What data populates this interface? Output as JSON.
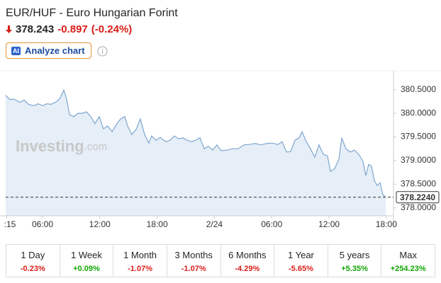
{
  "header": {
    "title": "EUR/HUF - Euro Hungarian Forint",
    "price": "378.243",
    "change": "-0.897",
    "change_percent": "(-0.24%)",
    "ai_badge": "AI",
    "button": "Analyze chart"
  },
  "chart_data": {
    "type": "line",
    "color": "#7ea7cf",
    "fill_color": "#e6eef7",
    "watermark_brand": "Investing",
    "watermark_suffix": ".com",
    "x": [
      2.14,
      2.59,
      3.03,
      3.62,
      4.07,
      4.52,
      5.11,
      5.55,
      6.0,
      6.45,
      6.89,
      7.34,
      7.78,
      8.23,
      8.52,
      8.82,
      9.27,
      9.71,
      10.16,
      10.6,
      11.05,
      11.49,
      11.94,
      12.38,
      12.83,
      13.28,
      13.72,
      14.17,
      14.61,
      14.91,
      15.35,
      15.8,
      16.24,
      16.69,
      17.14,
      17.43,
      17.88,
      18.32,
      18.92,
      19.36,
      19.81,
      20.25,
      20.7,
      21.14,
      21.59,
      22.04,
      22.48,
      22.93,
      23.37,
      23.82,
      24.26,
      24.71,
      25.3,
      25.9,
      26.49,
      27.08,
      27.68,
      28.27,
      28.87,
      29.46,
      30.05,
      30.65,
      31.09,
      31.54,
      31.98,
      32.43,
      32.87,
      33.17,
      33.62,
      34.06,
      34.51,
      34.95,
      35.4,
      35.84,
      36.14,
      36.59,
      37.03,
      37.33,
      37.77,
      38.22,
      38.67,
      39.11,
      39.56,
      39.85,
      40.15,
      40.45,
      40.74,
      41.04,
      41.34,
      41.63,
      41.93
    ],
    "values": [
      380.38,
      380.29,
      380.3,
      380.23,
      380.28,
      380.19,
      380.16,
      380.2,
      380.16,
      380.2,
      380.19,
      380.23,
      380.3,
      380.49,
      380.3,
      379.97,
      379.93,
      380.0,
      380.0,
      380.03,
      379.93,
      379.78,
      379.93,
      379.67,
      379.73,
      379.61,
      379.76,
      379.88,
      379.93,
      379.73,
      379.55,
      379.66,
      379.88,
      379.55,
      379.37,
      379.52,
      379.43,
      379.49,
      379.4,
      379.43,
      379.52,
      379.46,
      379.48,
      379.43,
      379.4,
      379.43,
      379.48,
      379.25,
      379.3,
      379.22,
      379.33,
      379.21,
      379.22,
      379.25,
      379.25,
      379.33,
      379.34,
      379.36,
      379.33,
      379.36,
      379.37,
      379.34,
      379.4,
      379.18,
      379.19,
      379.43,
      379.48,
      379.61,
      379.4,
      379.25,
      379.07,
      379.33,
      379.13,
      379.1,
      378.77,
      378.83,
      379.03,
      379.48,
      379.25,
      379.18,
      379.22,
      379.13,
      378.98,
      378.68,
      378.92,
      378.88,
      378.58,
      378.47,
      378.53,
      378.28,
      378.224
    ],
    "xlim": [
      2.14,
      42.75
    ],
    "xticks": [
      {
        "value": 2.25,
        "label": ":15"
      },
      {
        "value": 6,
        "label": "06:00"
      },
      {
        "value": 12,
        "label": "12:00"
      },
      {
        "value": 18,
        "label": "18:00"
      },
      {
        "value": 24,
        "label": "2/24"
      },
      {
        "value": 30,
        "label": "06:00"
      },
      {
        "value": 36,
        "label": "12:00"
      },
      {
        "value": 42,
        "label": "18:00"
      }
    ],
    "ylim": [
      377.83,
      380.9
    ],
    "yticks": [
      {
        "value": 378,
        "label": "378.0000"
      },
      {
        "value": 378.5,
        "label": "378.5000"
      },
      {
        "value": 379,
        "label": "379.0000"
      },
      {
        "value": 379.5,
        "label": "379.5000"
      },
      {
        "value": 380,
        "label": "380.0000"
      },
      {
        "value": 380.5,
        "label": "380.5000"
      }
    ],
    "last_price": {
      "value": 378.224,
      "label": "378.2240"
    },
    "grid": false
  },
  "periods": [
    {
      "label": "1 Day",
      "change": "-0.23%"
    },
    {
      "label": "1 Week",
      "change": "+0.09%"
    },
    {
      "label": "1 Month",
      "change": "-1.07%"
    },
    {
      "label": "3 Months",
      "change": "-1.07%"
    },
    {
      "label": "6 Months",
      "change": "-4.29%"
    },
    {
      "label": "1 Year",
      "change": "-5.65%"
    },
    {
      "label": "5 years",
      "change": "+5.35%"
    },
    {
      "label": "Max",
      "change": "+254.23%"
    }
  ]
}
